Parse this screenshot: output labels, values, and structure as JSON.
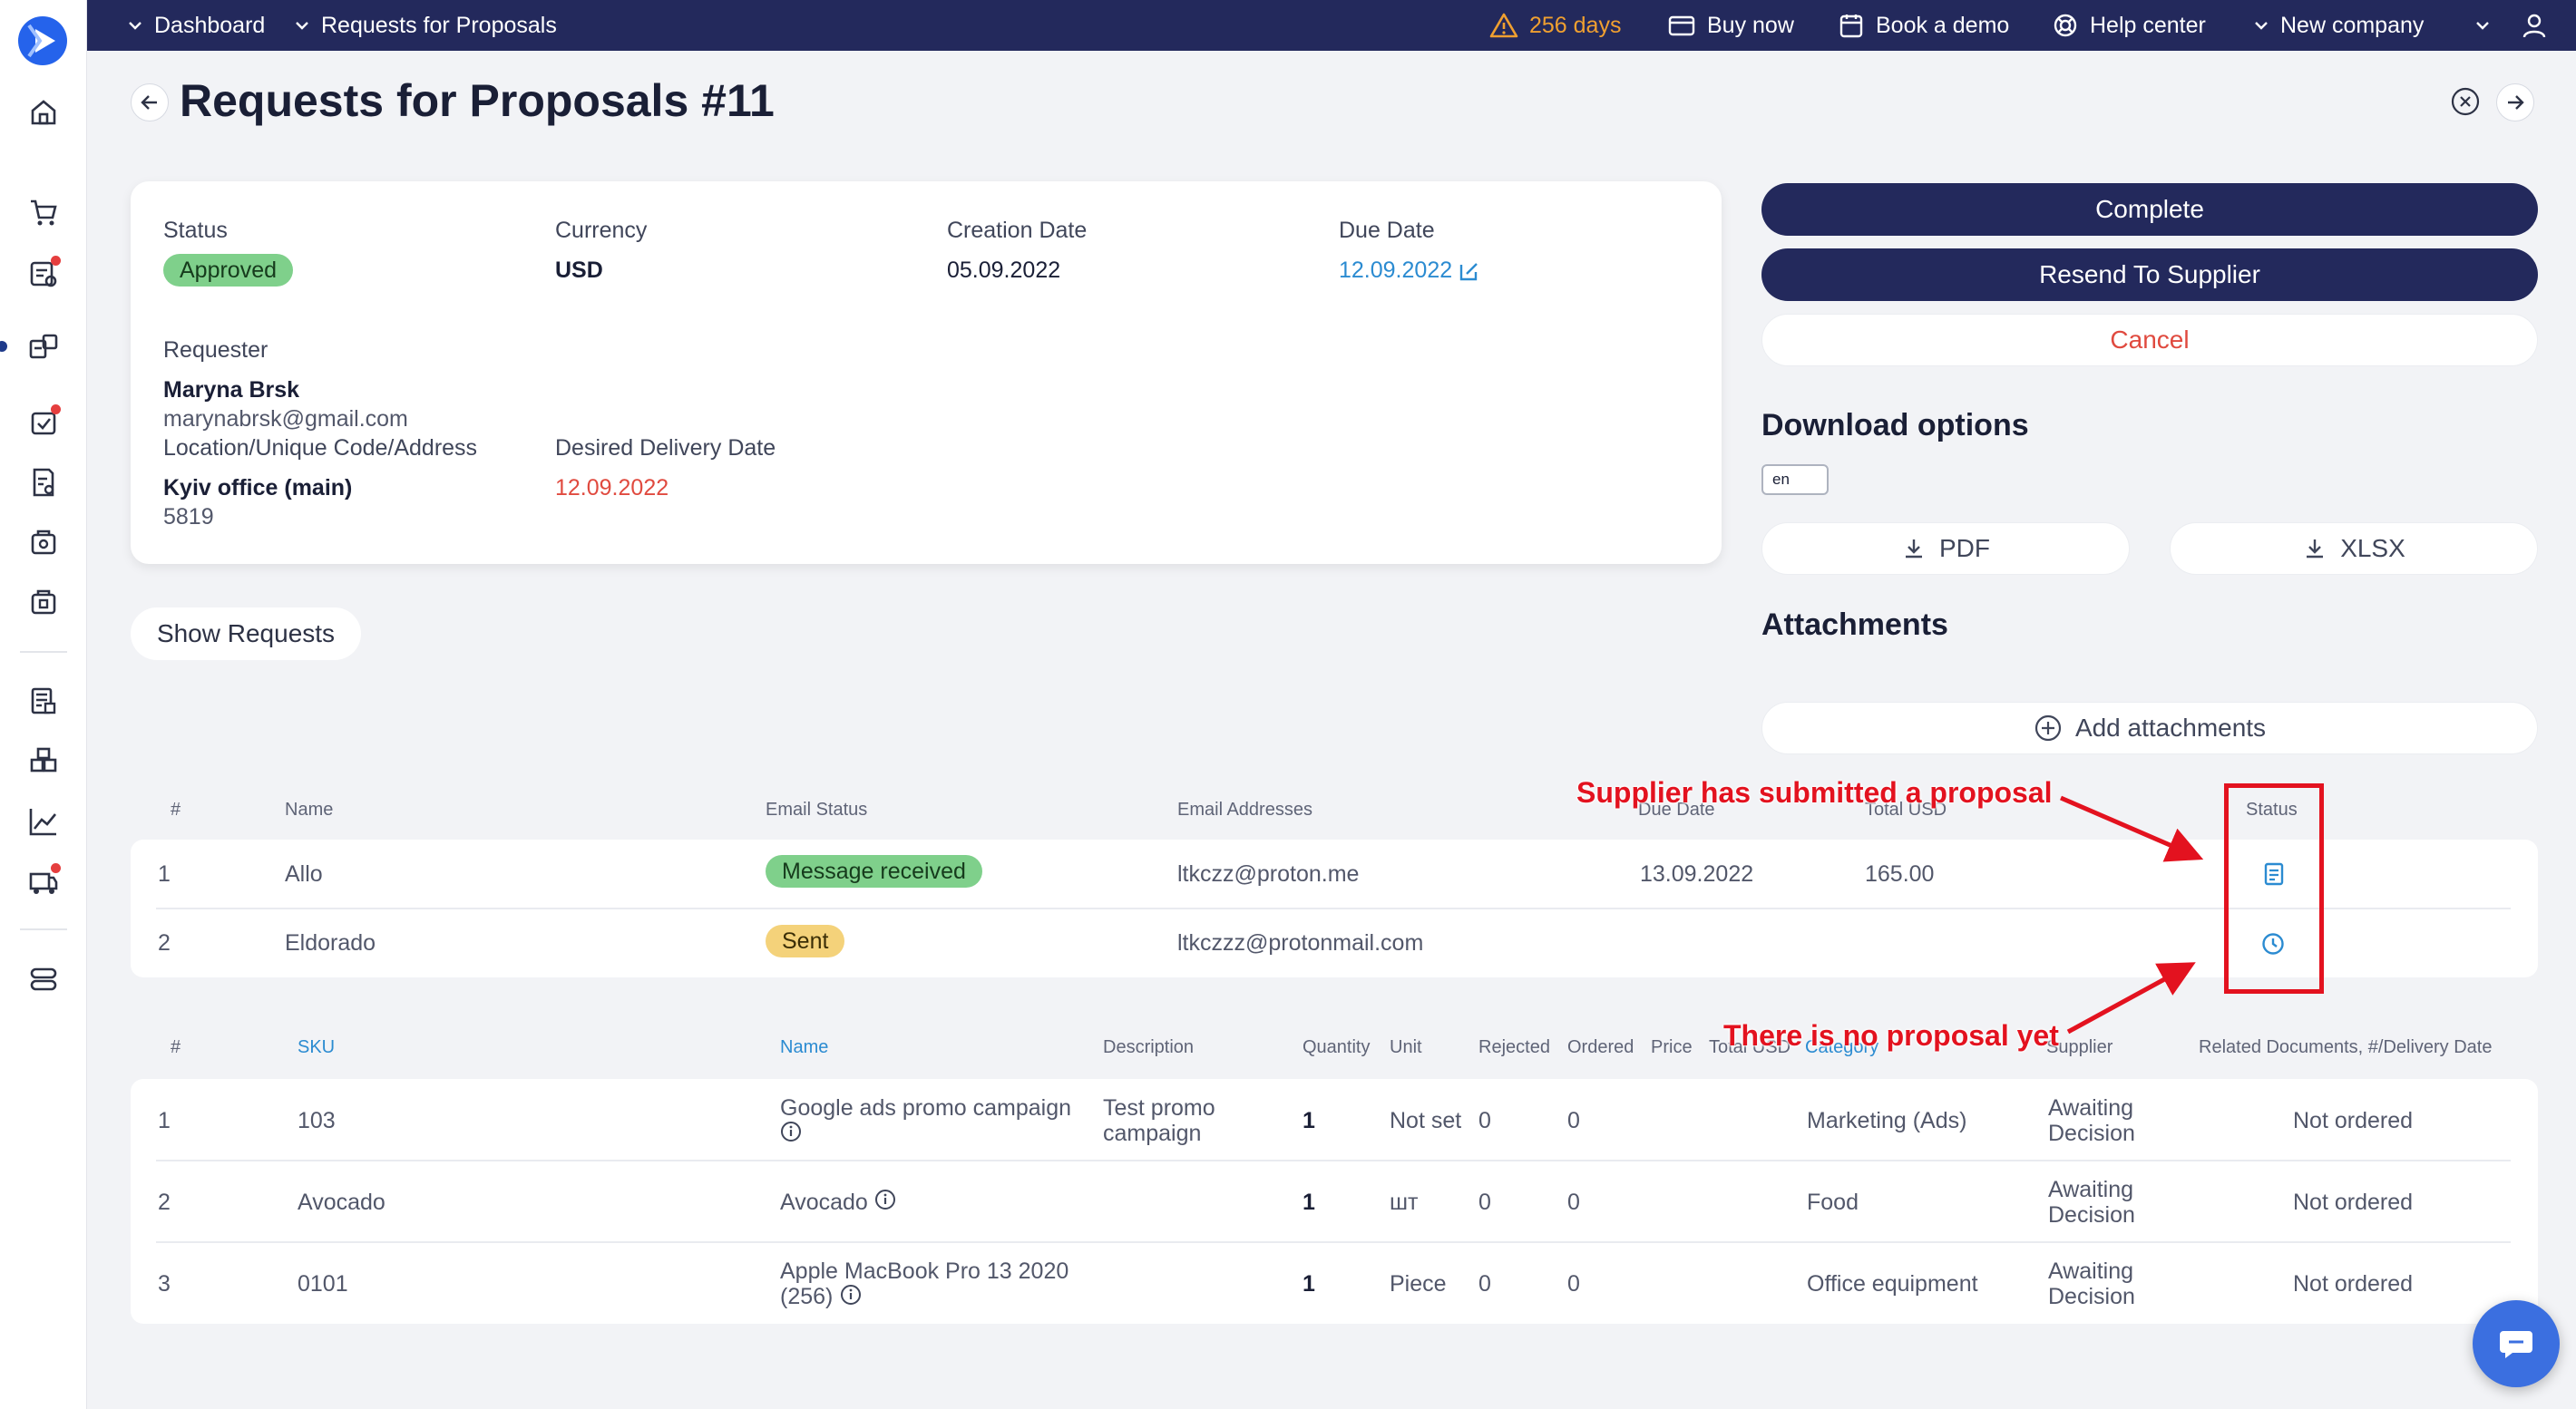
{
  "topbar": {
    "breadcrumb_1": "Dashboard",
    "breadcrumb_2": "Requests for Proposals",
    "trial_days": "256 days",
    "buy_now": "Buy now",
    "book_demo": "Book a demo",
    "help_center": "Help center",
    "company": "New company"
  },
  "page": {
    "title": "Requests for Proposals #11"
  },
  "info": {
    "status_label": "Status",
    "status_value": "Approved",
    "currency_label": "Currency",
    "currency_value": "USD",
    "creation_date_label": "Creation Date",
    "creation_date_value": "05.09.2022",
    "due_date_label": "Due Date",
    "due_date_value": "12.09.2022",
    "requester_label": "Requester",
    "requester_name": "Maryna Brsk",
    "requester_email": "marynabrsk@gmail.com",
    "location_label": "Location/Unique Code/Address",
    "location_name": "Kyiv office (main)",
    "location_code": "5819",
    "delivery_date_label": "Desired Delivery Date",
    "delivery_date_value": "12.09.2022"
  },
  "actions": {
    "complete": "Complete",
    "resend": "Resend To Supplier",
    "cancel": "Cancel",
    "download_heading": "Download options",
    "language": "en",
    "pdf": "PDF",
    "xlsx": "XLSX",
    "attachments_heading": "Attachments",
    "add_attachments": "Add attachments"
  },
  "show_requests": "Show Requests",
  "suppliers_table": {
    "headers": {
      "num": "#",
      "name": "Name",
      "email_status": "Email Status",
      "email_addresses": "Email Addresses",
      "due_date": "Due Date",
      "total": "Total USD",
      "status": "Status"
    },
    "rows": [
      {
        "num": "1",
        "name": "Allo",
        "email_status": "Message received",
        "email": "ltkczz@proton.me",
        "due_date": "13.09.2022",
        "total": "165.00",
        "status_icon": "document-icon"
      },
      {
        "num": "2",
        "name": "Eldorado",
        "email_status": "Sent",
        "email": "ltkczzz@protonmail.com",
        "due_date": "",
        "total": "",
        "status_icon": "clock-icon"
      }
    ]
  },
  "items_table": {
    "headers": {
      "num": "#",
      "sku": "SKU",
      "name": "Name",
      "description": "Description",
      "quantity": "Quantity",
      "unit": "Unit",
      "rejected": "Rejected",
      "ordered": "Ordered",
      "price": "Price",
      "total": "Total USD",
      "category": "Category",
      "supplier": "Supplier",
      "related": "Related Documents, #/Delivery Date"
    },
    "rows": [
      {
        "num": "1",
        "sku": "103",
        "name": "Google ads promo campaign",
        "description_1": "Test promo",
        "description_2": "campaign",
        "quantity": "1",
        "unit": "Not set",
        "rejected": "0",
        "ordered": "0",
        "category": "Marketing (Ads)",
        "supplier_1": "Awaiting",
        "supplier_2": "Decision",
        "related": "Not ordered"
      },
      {
        "num": "2",
        "sku": "Avocado",
        "name": "Avocado",
        "description_1": "",
        "description_2": "",
        "quantity": "1",
        "unit": "шт",
        "rejected": "0",
        "ordered": "0",
        "category": "Food",
        "supplier_1": "Awaiting",
        "supplier_2": "Decision",
        "related": "Not ordered"
      },
      {
        "num": "3",
        "sku": "0101",
        "name_1": "Apple MacBook Pro 13 2020",
        "name_2": "(256)",
        "description_1": "",
        "description_2": "",
        "quantity": "1",
        "unit": "Piece",
        "rejected": "0",
        "ordered": "0",
        "category": "Office equipment",
        "supplier_1": "Awaiting",
        "supplier_2": "Decision",
        "related": "Not ordered"
      }
    ]
  },
  "annotations": {
    "submitted": "Supplier has submitted a proposal",
    "no_proposal": "There is no proposal yet"
  },
  "colors": {
    "navy": "#23295c",
    "accent_blue": "#2b8bd1",
    "approved_green": "#7fd08b",
    "sent_yellow": "#f4d27a",
    "annotation_red": "#e3121f",
    "warning_orange": "#f0a030"
  }
}
